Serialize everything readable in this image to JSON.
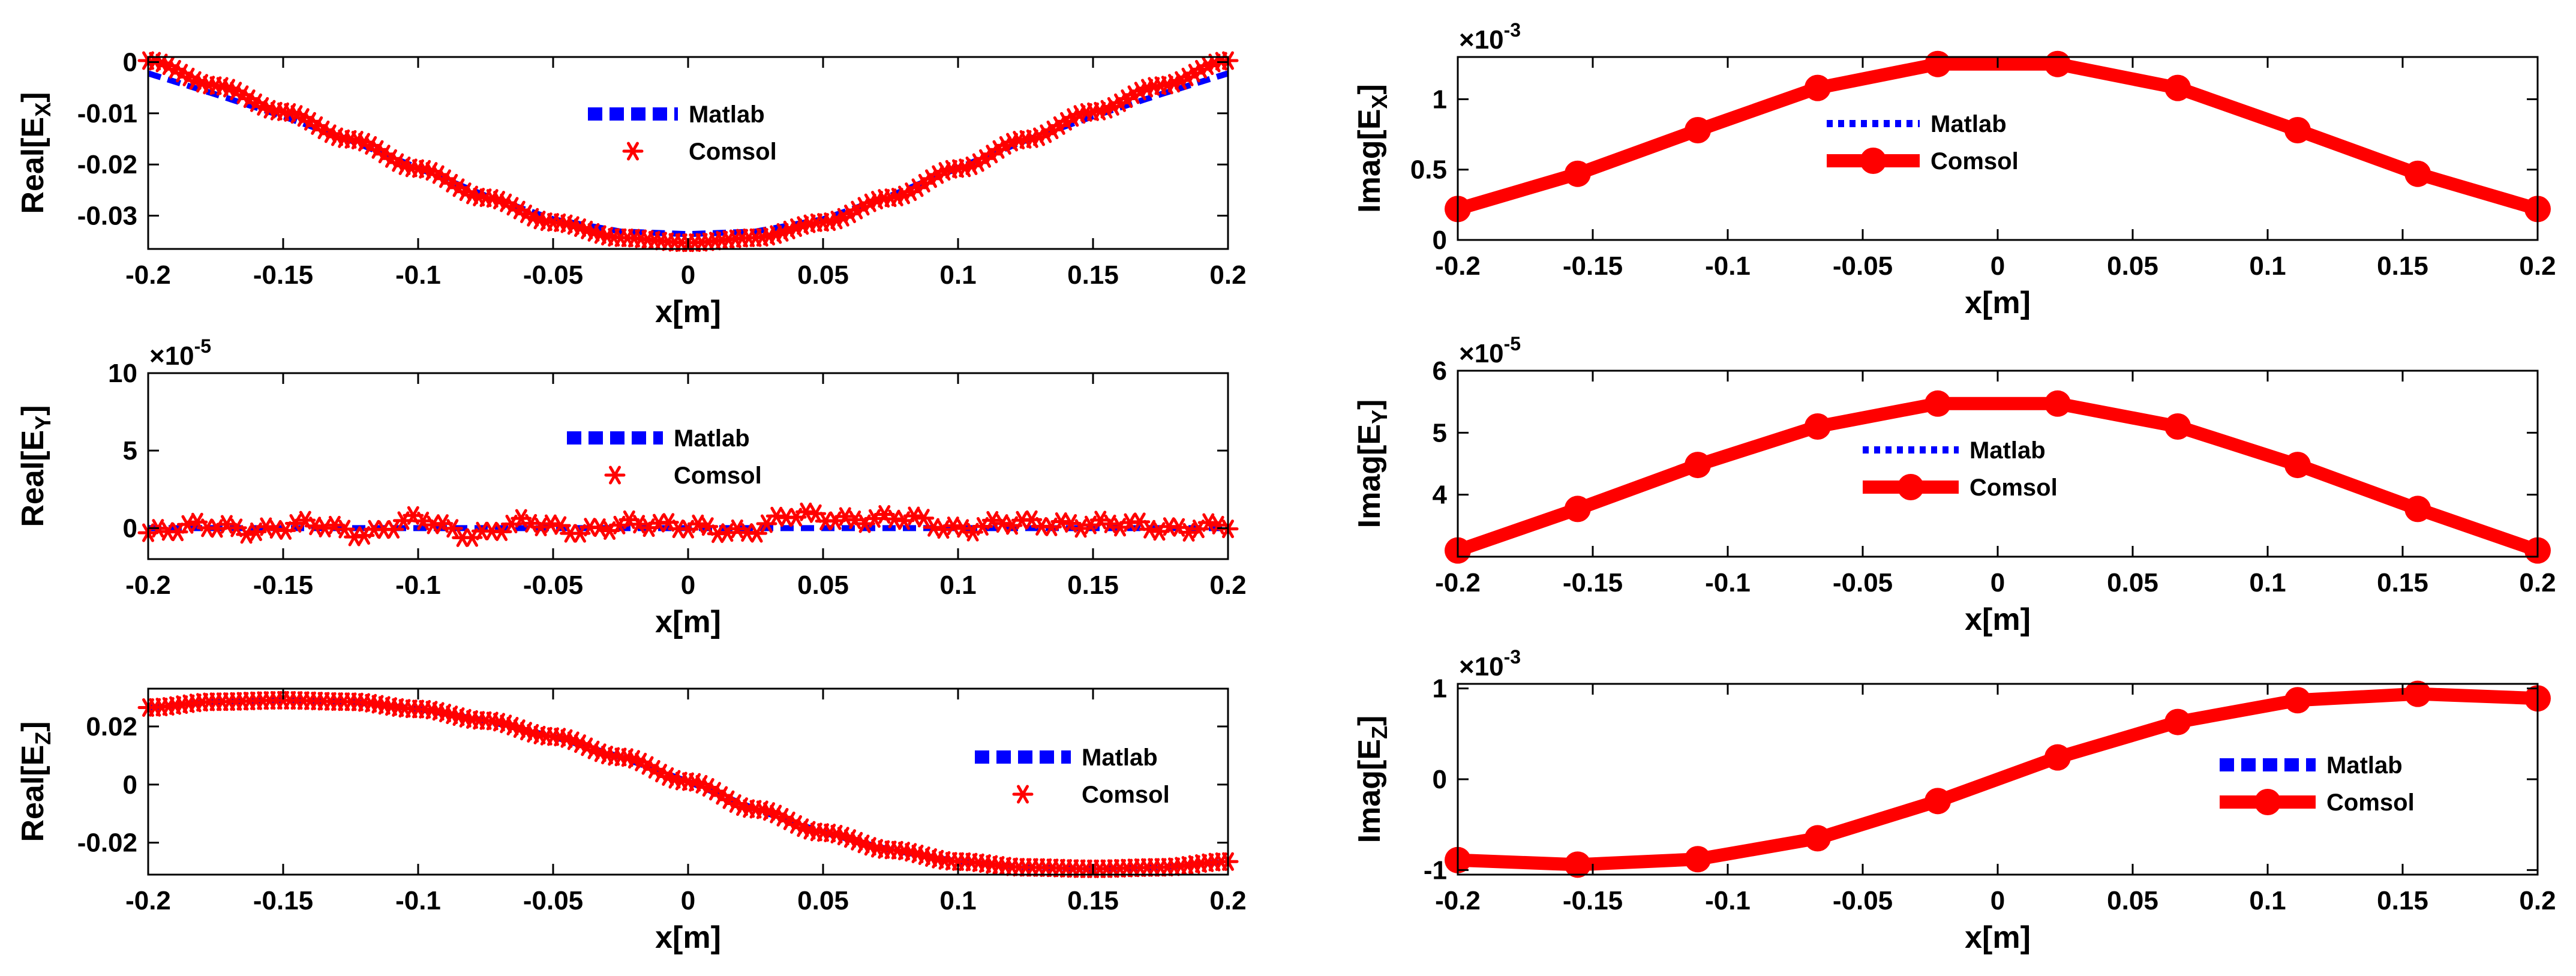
{
  "chart_data": [
    {
      "id": "real-ex",
      "type": "line",
      "title": "",
      "xlabel": "x[m]",
      "ylabel": {
        "base": "Real[E",
        "sub": "X",
        "close": "]"
      },
      "xlim": [
        -0.2,
        0.2
      ],
      "ylim": [
        -0.0365,
        0.001
      ],
      "xticks": [
        -0.2,
        -0.15,
        -0.1,
        -0.05,
        0,
        0.05,
        0.1,
        0.15,
        0.2
      ],
      "xtick_labels": [
        "-0.2",
        "-0.15",
        "-0.1",
        "-0.05",
        "0",
        "0.05",
        "0.1",
        "0.15",
        "0.2"
      ],
      "yticks": [
        0,
        -0.01,
        -0.02,
        -0.03
      ],
      "ytick_labels": [
        "0",
        "-0.01",
        "-0.02",
        "-0.03"
      ],
      "exponent": "",
      "legend_position": "upper-center",
      "series": [
        {
          "name": "Matlab",
          "style": "dashed-blue",
          "x": [
            -0.2,
            -0.175,
            -0.15,
            -0.125,
            -0.1,
            -0.075,
            -0.05,
            -0.025,
            0,
            0.025,
            0.05,
            0.075,
            0.1,
            0.125,
            0.15,
            0.175,
            0.2
          ],
          "y": [
            -0.0022,
            -0.0063,
            -0.0106,
            -0.0153,
            -0.0207,
            -0.0261,
            -0.0307,
            -0.0331,
            -0.0336,
            -0.0331,
            -0.0307,
            -0.0261,
            -0.0207,
            -0.0153,
            -0.0106,
            -0.0063,
            -0.0022
          ]
        },
        {
          "name": "Comsol",
          "style": "red-asterisk",
          "x": [
            -0.2,
            -0.175,
            -0.15,
            -0.125,
            -0.1,
            -0.075,
            -0.05,
            -0.025,
            0,
            0.025,
            0.05,
            0.075,
            0.1,
            0.125,
            0.15,
            0.175,
            0.2
          ],
          "y": [
            0.0003,
            -0.0046,
            -0.0097,
            -0.0151,
            -0.0208,
            -0.0265,
            -0.0313,
            -0.0343,
            -0.0353,
            -0.0343,
            -0.0313,
            -0.0265,
            -0.0208,
            -0.0151,
            -0.0097,
            -0.0046,
            0.0003
          ]
        }
      ]
    },
    {
      "id": "real-ey",
      "type": "line",
      "title": "",
      "xlabel": "x[m]",
      "ylabel": {
        "base": "Real[E",
        "sub": "Y",
        "close": "]"
      },
      "xlim": [
        -0.2,
        0.2
      ],
      "ylim": [
        -2,
        10
      ],
      "xticks": [
        -0.2,
        -0.15,
        -0.1,
        -0.05,
        0,
        0.05,
        0.1,
        0.15,
        0.2
      ],
      "xtick_labels": [
        "-0.2",
        "-0.15",
        "-0.1",
        "-0.05",
        "0",
        "0.05",
        "0.1",
        "0.15",
        "0.2"
      ],
      "yticks": [
        0,
        5,
        10
      ],
      "ytick_labels": [
        "0",
        "5",
        "10"
      ],
      "exponent": "×10",
      "exponent_power": "-5",
      "legend_position": "center",
      "series": [
        {
          "name": "Matlab",
          "style": "dashed-blue",
          "x": [
            -0.2,
            0.2
          ],
          "y": [
            0,
            0
          ]
        },
        {
          "name": "Comsol",
          "style": "red-asterisk",
          "x": [
            -0.2,
            -0.18,
            -0.16,
            -0.14,
            -0.12,
            -0.1,
            -0.08,
            -0.06,
            -0.04,
            -0.02,
            0,
            0.02,
            0.04,
            0.06,
            0.08,
            0.1,
            0.12,
            0.14,
            0.16,
            0.18,
            0.2
          ],
          "y": [
            -0.3,
            0.2,
            -0.2,
            0.3,
            -0.4,
            0.6,
            -0.5,
            0.4,
            -0.2,
            0.3,
            0.1,
            -0.3,
            0.9,
            0.5,
            0.7,
            -0.1,
            0.4,
            0.2,
            0.3,
            -0.1,
            0.2
          ]
        }
      ]
    },
    {
      "id": "real-ez",
      "type": "line",
      "title": "",
      "xlabel": "x[m]",
      "ylabel": {
        "base": "Real[E",
        "sub": "Z",
        "close": "]"
      },
      "xlim": [
        -0.2,
        0.2
      ],
      "ylim": [
        -0.031,
        0.033
      ],
      "xticks": [
        -0.2,
        -0.15,
        -0.1,
        -0.05,
        0,
        0.05,
        0.1,
        0.15,
        0.2
      ],
      "xtick_labels": [
        "-0.2",
        "-0.15",
        "-0.1",
        "-0.05",
        "0",
        "0.05",
        "0.1",
        "0.15",
        "0.2"
      ],
      "yticks": [
        0.02,
        0,
        -0.02
      ],
      "ytick_labels": [
        "0.02",
        "0",
        "-0.02"
      ],
      "exponent": "",
      "legend_position": "right",
      "series": [
        {
          "name": "Matlab",
          "style": "dashed-blue",
          "x": [
            -0.2,
            -0.175,
            -0.15,
            -0.125,
            -0.1,
            -0.075,
            -0.05,
            -0.025,
            0,
            0.025,
            0.05,
            0.075,
            0.1,
            0.125,
            0.15,
            0.175,
            0.2
          ],
          "y": [
            0.0265,
            0.0285,
            0.029,
            0.0285,
            0.026,
            0.022,
            0.0165,
            0.0095,
            0.001,
            -0.0085,
            -0.0165,
            -0.0225,
            -0.0265,
            -0.0285,
            -0.029,
            -0.0285,
            -0.0265
          ]
        },
        {
          "name": "Comsol",
          "style": "red-asterisk",
          "x": [
            -0.2,
            -0.175,
            -0.15,
            -0.125,
            -0.1,
            -0.075,
            -0.05,
            -0.025,
            0,
            0.025,
            0.05,
            0.075,
            0.1,
            0.125,
            0.15,
            0.175,
            0.2
          ],
          "y": [
            0.0265,
            0.0285,
            0.029,
            0.0285,
            0.026,
            0.022,
            0.0165,
            0.0095,
            0.001,
            -0.0085,
            -0.0165,
            -0.0225,
            -0.0265,
            -0.0285,
            -0.029,
            -0.0285,
            -0.0265
          ]
        }
      ]
    },
    {
      "id": "imag-ex",
      "type": "line",
      "title": "",
      "xlabel": "x[m]",
      "ylabel": {
        "base": "Imag[E",
        "sub": "X",
        "close": "]"
      },
      "xlim": [
        -0.2,
        0.2
      ],
      "ylim": [
        0,
        1.3
      ],
      "xticks": [
        -0.2,
        -0.15,
        -0.1,
        -0.05,
        0,
        0.05,
        0.1,
        0.15,
        0.2
      ],
      "xtick_labels": [
        "-0.2",
        "-0.15",
        "-0.1",
        "-0.05",
        "0",
        "0.05",
        "0.1",
        "0.15",
        "0.2"
      ],
      "yticks": [
        0,
        0.5,
        1
      ],
      "ytick_labels": [
        "0",
        "0.5",
        "1"
      ],
      "exponent": "×10",
      "exponent_power": "-3",
      "legend_position": "upper-center",
      "series": [
        {
          "name": "Matlab",
          "style": "dotted-blue",
          "x": [
            -0.2,
            -0.1556,
            -0.1111,
            -0.0667,
            -0.0222,
            0.0222,
            0.0667,
            0.1111,
            0.1556,
            0.2
          ],
          "y": [
            0.22,
            0.47,
            0.78,
            1.08,
            1.25,
            1.25,
            1.08,
            0.78,
            0.47,
            0.22
          ]
        },
        {
          "name": "Comsol",
          "style": "red-thick-circle",
          "x": [
            -0.2,
            -0.1556,
            -0.1111,
            -0.0667,
            -0.0222,
            0.0222,
            0.0667,
            0.1111,
            0.1556,
            0.2
          ],
          "y": [
            0.22,
            0.47,
            0.78,
            1.08,
            1.25,
            1.25,
            1.08,
            0.78,
            0.47,
            0.22
          ]
        }
      ]
    },
    {
      "id": "imag-ey",
      "type": "line",
      "title": "",
      "xlabel": "x[m]",
      "ylabel": {
        "base": "Imag[E",
        "sub": "Y",
        "close": "]"
      },
      "xlim": [
        -0.2,
        0.2
      ],
      "ylim": [
        3.0,
        6
      ],
      "xticks": [
        -0.2,
        -0.15,
        -0.1,
        -0.05,
        0,
        0.05,
        0.1,
        0.15,
        0.2
      ],
      "xtick_labels": [
        "-0.2",
        "-0.15",
        "-0.1",
        "-0.05",
        "0",
        "0.05",
        "0.1",
        "0.15",
        "0.2"
      ],
      "yticks": [
        4,
        5,
        6
      ],
      "ytick_labels": [
        "4",
        "5",
        "6"
      ],
      "exponent": "×10",
      "exponent_power": "-5",
      "legend_position": "center",
      "series": [
        {
          "name": "Matlab",
          "style": "dotted-blue",
          "x": [
            -0.2,
            -0.1556,
            -0.1111,
            -0.0667,
            -0.0222,
            0.0222,
            0.0667,
            0.1111,
            0.1556,
            0.2
          ],
          "y": [
            3.1,
            3.77,
            4.48,
            5.1,
            5.47,
            5.47,
            5.1,
            4.48,
            3.77,
            3.1
          ]
        },
        {
          "name": "Comsol",
          "style": "red-thick-circle",
          "x": [
            -0.2,
            -0.1556,
            -0.1111,
            -0.0667,
            -0.0222,
            0.0222,
            0.0667,
            0.1111,
            0.1556,
            0.2
          ],
          "y": [
            3.1,
            3.77,
            4.48,
            5.1,
            5.47,
            5.47,
            5.1,
            4.48,
            3.77,
            3.1
          ]
        }
      ]
    },
    {
      "id": "imag-ez",
      "type": "line",
      "title": "",
      "xlabel": "x[m]",
      "ylabel": {
        "base": "Imag[E",
        "sub": "Z",
        "close": "]"
      },
      "xlim": [
        -0.2,
        0.2
      ],
      "ylim": [
        -1.05,
        1.05
      ],
      "xticks": [
        -0.2,
        -0.15,
        -0.1,
        -0.05,
        0,
        0.05,
        0.1,
        0.15,
        0.2
      ],
      "xtick_labels": [
        "-0.2",
        "-0.15",
        "-0.1",
        "-0.05",
        "0",
        "0.05",
        "0.1",
        "0.15",
        "0.2"
      ],
      "yticks": [
        1,
        0,
        -1
      ],
      "ytick_labels": [
        "1",
        "0",
        "-1"
      ],
      "exponent": "×10",
      "exponent_power": "-3",
      "legend_position": "right",
      "series": [
        {
          "name": "Matlab",
          "style": "dashed-blue",
          "x": [
            -0.2,
            -0.1556,
            -0.1111,
            -0.0667,
            -0.0222,
            0.0222,
            0.0667,
            0.1111,
            0.1556,
            0.2
          ],
          "y": [
            -0.87,
            -0.92,
            -0.86,
            -0.63,
            -0.22,
            0.26,
            0.65,
            0.88,
            0.95,
            0.88
          ]
        },
        {
          "name": "Comsol",
          "style": "red-thick-circle",
          "x": [
            -0.2,
            -0.1556,
            -0.1111,
            -0.0667,
            -0.0222,
            0.0222,
            0.0667,
            0.1111,
            0.1556,
            0.2
          ],
          "y": [
            -0.89,
            -0.94,
            -0.88,
            -0.65,
            -0.24,
            0.24,
            0.63,
            0.87,
            0.94,
            0.89
          ]
        }
      ]
    }
  ]
}
